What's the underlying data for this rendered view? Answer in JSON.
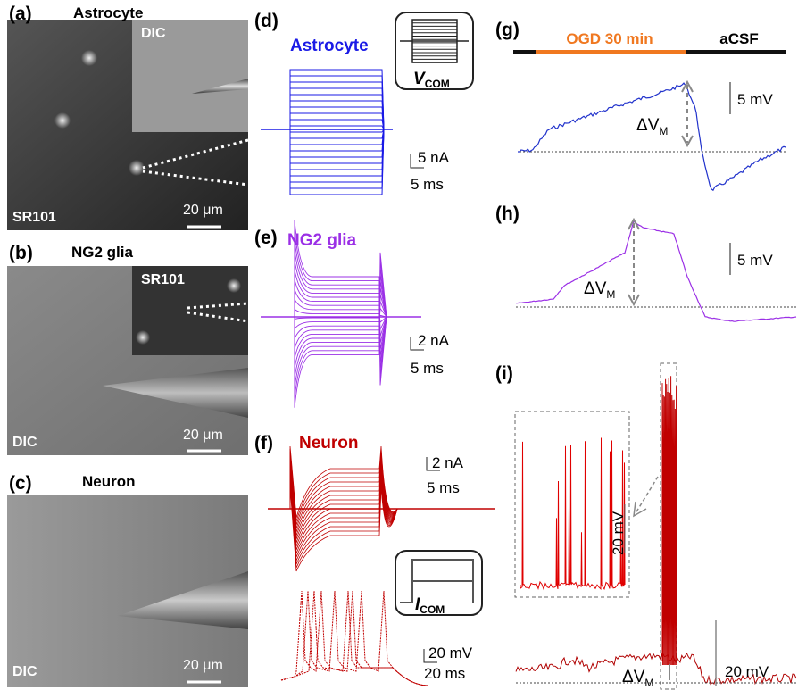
{
  "panels": {
    "a": {
      "label": "(a)",
      "title": "Astrocyte",
      "inset": "DIC",
      "image_label": "SR101",
      "scale": "20 μm"
    },
    "b": {
      "label": "(b)",
      "title": "NG2 glia",
      "inset": "SR101",
      "image_label": "DIC",
      "scale": "20 μm"
    },
    "c": {
      "label": "(c)",
      "title": "Neuron",
      "image_label": "DIC",
      "scale": "20 μm"
    },
    "d": {
      "label": "(d)",
      "title": "Astrocyte",
      "command": "V",
      "command_sub": "COM",
      "scale_y": "5 nA",
      "scale_x": "5 ms"
    },
    "e": {
      "label": "(e)",
      "title": "NG2 glia",
      "scale_y": "2 nA",
      "scale_x": "5 ms"
    },
    "f": {
      "label": "(f)",
      "title": "Neuron",
      "scale_y": "2 nA",
      "scale_x": "5 ms",
      "command": "I",
      "command_sub": "COM",
      "ap_scale_y": "20 mV",
      "ap_scale_x": "20 ms"
    },
    "g": {
      "label": "(g)",
      "treatment": "OGD 30 min",
      "wash": "aCSF",
      "scale_y": "5 mV",
      "delta": "ΔV",
      "delta_sub": "M"
    },
    "h": {
      "label": "(h)",
      "scale_y": "5 mV",
      "delta": "ΔV",
      "delta_sub": "M"
    },
    "i": {
      "label": "(i)",
      "inset_scale": "20 mV",
      "scale_y": "20 mV",
      "delta": "ΔV",
      "delta_sub": "M"
    }
  }
}
